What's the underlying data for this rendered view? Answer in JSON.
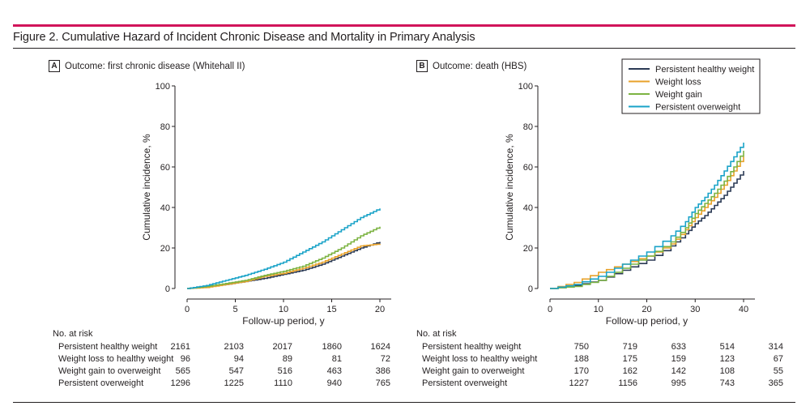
{
  "figure": {
    "title": "Figure 2. Cumulative Hazard of Incident Chronic Disease and Mortality in Primary Analysis"
  },
  "colors": {
    "accent_rule": "#d1145a",
    "Persistent healthy weight": "#2b3a55",
    "Weight loss": "#e8a22a",
    "Weight gain": "#7cb342",
    "Persistent overweight": "#1aa3c8"
  },
  "legend": {
    "items": [
      "Persistent healthy weight",
      "Weight loss",
      "Weight gain",
      "Persistent overweight"
    ]
  },
  "chart_data": [
    {
      "panel": "A",
      "type": "line",
      "title": "Outcome: first chronic disease (Whitehall II)",
      "xlabel": "Follow-up period, y",
      "ylabel": "Cumulative incidence, %",
      "xlim": [
        0,
        20
      ],
      "ylim": [
        0,
        100
      ],
      "xticks": [
        "0",
        "5",
        "10",
        "15",
        "20"
      ],
      "yticks": [
        "0",
        "20",
        "40",
        "60",
        "80",
        "100"
      ],
      "series": [
        {
          "name": "Persistent healthy weight",
          "x": [
            0,
            2,
            4,
            6,
            8,
            10,
            12,
            14,
            16,
            18,
            20
          ],
          "values": [
            0,
            1,
            2,
            3.5,
            5,
            7,
            9,
            12,
            16,
            20,
            23
          ]
        },
        {
          "name": "Weight loss",
          "x": [
            0,
            2,
            4,
            6,
            8,
            10,
            12,
            14,
            16,
            18,
            20
          ],
          "values": [
            0,
            0.5,
            2,
            3.5,
            6,
            7.5,
            10,
            13,
            17,
            21,
            22
          ]
        },
        {
          "name": "Weight gain",
          "x": [
            0,
            2,
            4,
            6,
            8,
            10,
            12,
            14,
            16,
            18,
            20
          ],
          "values": [
            0,
            1,
            2.5,
            4,
            6.5,
            8.5,
            11,
            15,
            20,
            26,
            30.5
          ]
        },
        {
          "name": "Persistent overweight",
          "x": [
            0,
            2,
            4,
            6,
            8,
            10,
            12,
            14,
            16,
            18,
            20
          ],
          "values": [
            0,
            1.5,
            4,
            6.5,
            9.5,
            13,
            18,
            23,
            29,
            35,
            39.5
          ]
        }
      ]
    },
    {
      "panel": "B",
      "type": "line",
      "title": "Outcome: death (HBS)",
      "xlabel": "Follow-up period, y",
      "ylabel": "Cumulative incidence, %",
      "xlim": [
        0,
        40
      ],
      "ylim": [
        0,
        100
      ],
      "xticks": [
        "0",
        "10",
        "20",
        "30",
        "40"
      ],
      "yticks": [
        "0",
        "20",
        "40",
        "60",
        "80",
        "100"
      ],
      "series": [
        {
          "name": "Persistent healthy weight",
          "x": [
            0,
            5,
            10,
            15,
            20,
            25,
            28,
            30,
            32,
            34,
            36,
            38,
            40
          ],
          "values": [
            0,
            1.5,
            4,
            9,
            14,
            21,
            27,
            32,
            36,
            41,
            46,
            52,
            58
          ]
        },
        {
          "name": "Weight loss",
          "x": [
            0,
            5,
            10,
            15,
            20,
            25,
            28,
            30,
            32,
            34,
            36,
            38,
            40
          ],
          "values": [
            0,
            3,
            8,
            12,
            16,
            22,
            29,
            35,
            40,
            45,
            51,
            58,
            65
          ]
        },
        {
          "name": "Weight gain",
          "x": [
            0,
            5,
            10,
            15,
            20,
            25,
            28,
            30,
            32,
            34,
            36,
            38,
            40
          ],
          "values": [
            0,
            1,
            4,
            10,
            16,
            23,
            30,
            37,
            42,
            47,
            53,
            60,
            68
          ]
        },
        {
          "name": "Persistent overweight",
          "x": [
            0,
            5,
            10,
            15,
            20,
            25,
            28,
            30,
            32,
            34,
            36,
            38,
            40
          ],
          "values": [
            0,
            2,
            6,
            12,
            18,
            26,
            33,
            40,
            45,
            51,
            58,
            65,
            72
          ]
        }
      ]
    }
  ],
  "risk_tables": [
    {
      "panel": "A",
      "header": "No. at risk",
      "rows": [
        {
          "label": "Persistent healthy weight",
          "values": [
            "2161",
            "2103",
            "2017",
            "1860",
            "1624"
          ]
        },
        {
          "label": "Weight loss to healthy weight",
          "values": [
            "96",
            "94",
            "89",
            "81",
            "72"
          ]
        },
        {
          "label": "Weight gain to overweight",
          "values": [
            "565",
            "547",
            "516",
            "463",
            "386"
          ]
        },
        {
          "label": "Persistent overweight",
          "values": [
            "1296",
            "1225",
            "1110",
            "940",
            "765"
          ]
        }
      ]
    },
    {
      "panel": "B",
      "header": "No. at risk",
      "rows": [
        {
          "label": "Persistent healthy weight",
          "values": [
            "750",
            "719",
            "633",
            "514",
            "314"
          ]
        },
        {
          "label": "Weight loss to healthy weight",
          "values": [
            "188",
            "175",
            "159",
            "123",
            "67"
          ]
        },
        {
          "label": "Weight gain to overweight",
          "values": [
            "170",
            "162",
            "142",
            "108",
            "55"
          ]
        },
        {
          "label": "Persistent overweight",
          "values": [
            "1227",
            "1156",
            "995",
            "743",
            "365"
          ]
        }
      ]
    }
  ]
}
